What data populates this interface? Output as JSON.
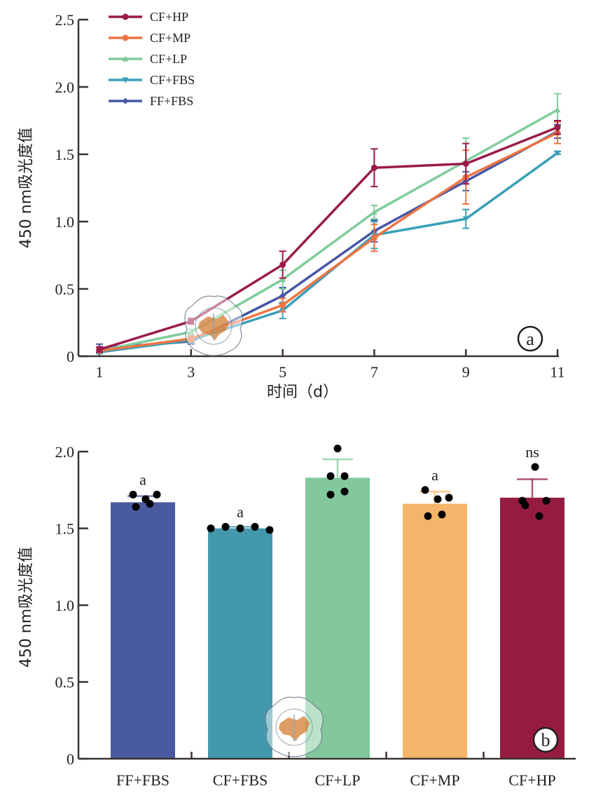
{
  "chart_data": [
    {
      "panel": "a",
      "type": "line",
      "title": "",
      "xlabel": "时间（d）",
      "ylabel": "450 nm吸光度值",
      "x": [
        1,
        3,
        5,
        7,
        9,
        11
      ],
      "xticks": [
        "1",
        "3",
        "5",
        "7",
        "9",
        "11"
      ],
      "xlim": [
        1,
        11
      ],
      "ylim": [
        0,
        2.5
      ],
      "yticks": [
        "0",
        "0.5",
        "1.0",
        "1.5",
        "2.0",
        "2.5"
      ],
      "ytick_values": [
        0,
        0.5,
        1.0,
        1.5,
        2.0,
        2.5
      ],
      "grid": false,
      "legend_position": "top-left",
      "panel_marker": "a",
      "series": [
        {
          "name": "CF+HP",
          "color": "#9b1b4b",
          "marker": "circle",
          "values": [
            0.05,
            0.26,
            0.68,
            1.4,
            1.43,
            1.7
          ],
          "errors": [
            0.02,
            0.02,
            0.1,
            0.14,
            0.15,
            0.05
          ]
        },
        {
          "name": "CF+MP",
          "color": "#ee7444",
          "marker": "circle",
          "values": [
            0.04,
            0.13,
            0.38,
            0.88,
            1.33,
            1.66
          ],
          "errors": [
            0.01,
            0.02,
            0.05,
            0.1,
            0.2,
            0.08
          ]
        },
        {
          "name": "CF+LP",
          "color": "#7fcc9c",
          "marker": "triangle-up",
          "values": [
            0.04,
            0.18,
            0.57,
            1.07,
            1.45,
            1.83
          ],
          "errors": [
            0.01,
            0.02,
            0.07,
            0.05,
            0.17,
            0.12
          ]
        },
        {
          "name": "CF+FBS",
          "color": "#3aa0b8",
          "marker": "triangle-down",
          "values": [
            0.03,
            0.12,
            0.34,
            0.9,
            1.02,
            1.51
          ],
          "errors": [
            0.01,
            0.02,
            0.06,
            0.1,
            0.07,
            0.01
          ]
        },
        {
          "name": "FF+FBS",
          "color": "#4556a6",
          "marker": "diamond",
          "values": [
            0.06,
            0.11,
            0.45,
            0.93,
            1.3,
            1.67
          ],
          "errors": [
            0.03,
            0.02,
            0.06,
            0.08,
            0.07,
            0.05
          ]
        }
      ]
    },
    {
      "panel": "b",
      "type": "bar",
      "title": "",
      "xlabel": "",
      "ylabel": "450 nm吸光度值",
      "categories": [
        "FF+FBS",
        "CF+FBS",
        "CF+LP",
        "CF+MP",
        "CF+HP"
      ],
      "colors": [
        "#4a5aa0",
        "#4498ad",
        "#82c89c",
        "#f4b46a",
        "#951c40"
      ],
      "values": [
        1.67,
        1.5,
        1.83,
        1.66,
        1.7
      ],
      "errors": [
        0.04,
        0.01,
        0.12,
        0.08,
        0.12
      ],
      "points": [
        [
          1.72,
          1.69,
          1.72,
          1.64,
          1.66
        ],
        [
          1.5,
          1.51,
          1.5,
          1.51,
          1.49
        ],
        [
          1.84,
          2.02,
          1.84,
          1.72,
          1.74
        ],
        [
          1.75,
          1.69,
          1.7,
          1.58,
          1.59
        ],
        [
          1.68,
          1.9,
          1.68,
          1.65,
          1.58
        ]
      ],
      "significance": [
        "a",
        "a",
        "",
        "a",
        "ns"
      ],
      "ylim": [
        0,
        2.0
      ],
      "yticks": [
        "0",
        "0.5",
        "1.0",
        "1.5",
        "2.0"
      ],
      "ytick_values": [
        0,
        0.5,
        1.0,
        1.5,
        2.0
      ],
      "grid": false,
      "panel_marker": "b"
    }
  ],
  "watermark": {
    "description": "seal",
    "color": "#d98c4a"
  }
}
